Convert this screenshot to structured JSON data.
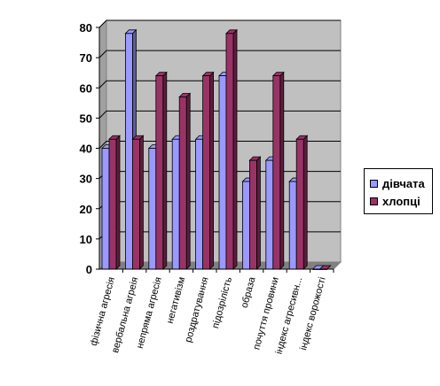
{
  "chart_data": {
    "type": "bar",
    "categories": [
      "фізична агресія",
      "вербальна агреія",
      "непряма агресія",
      "негативізм",
      "роздратування",
      "підозрілість",
      "образа",
      "почуття провини",
      "індекс агресивн...",
      "індекс ворожості"
    ],
    "series": [
      {
        "name": "дівчата",
        "values": [
          40,
          78,
          40,
          43,
          43,
          64,
          29,
          36,
          29,
          0
        ]
      },
      {
        "name": "хлопці",
        "values": [
          43,
          43,
          64,
          57,
          64,
          78,
          36,
          64,
          43,
          0
        ]
      }
    ],
    "ylim": [
      0,
      80
    ],
    "yticks": [
      "0",
      "10",
      "20",
      "30",
      "40",
      "50",
      "60",
      "70",
      "80"
    ],
    "title": "",
    "xlabel": "",
    "ylabel": "",
    "grid": true,
    "legend": "right",
    "style": "3d-clustered",
    "colors": {
      "дівчата": "#9999ff",
      "хлопці": "#993366",
      "wall": "#c0c0c0",
      "floor": "#808080",
      "gridline": "#000000"
    }
  }
}
